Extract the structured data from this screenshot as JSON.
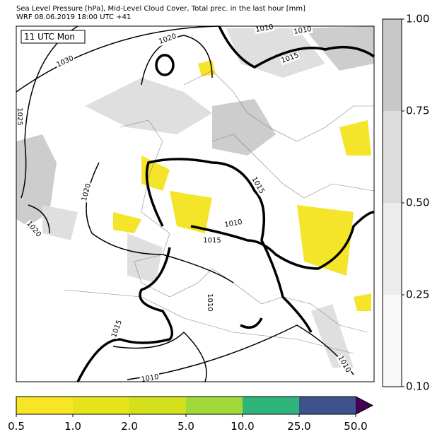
{
  "header": {
    "title": "Sea Level Pressure [hPa], Mid-Level Cloud Cover, Total prec. in the last hour [mm]",
    "subtitle": "WRF 08.06.2019 18:00 UTC +41"
  },
  "map": {
    "time_label": "11 UTC Mon",
    "isobar_labels": [
      "1020",
      "1030",
      "1025",
      "1020",
      "1020",
      "1010",
      "1010",
      "1015",
      "1015",
      "1010",
      "1015",
      "1010",
      "1015",
      "1010",
      "1010"
    ]
  },
  "cloud_colorbar": {
    "ticks": [
      "1.00",
      "0.75",
      "0.50",
      "0.25",
      "0.10"
    ],
    "colors": [
      "#c8c8c8",
      "#dcdcdc",
      "#ececec",
      "#f8f8f8"
    ]
  },
  "precip_colorbar": {
    "ticks": [
      "0.5",
      "1.0",
      "2.0",
      "5.0",
      "10.0",
      "25.0",
      "50.0"
    ],
    "colors": [
      "#f8e526",
      "#e6e31a",
      "#d2e11c",
      "#a0da39",
      "#2fb47c",
      "#3b528b"
    ],
    "extend_color": "#440154"
  }
}
